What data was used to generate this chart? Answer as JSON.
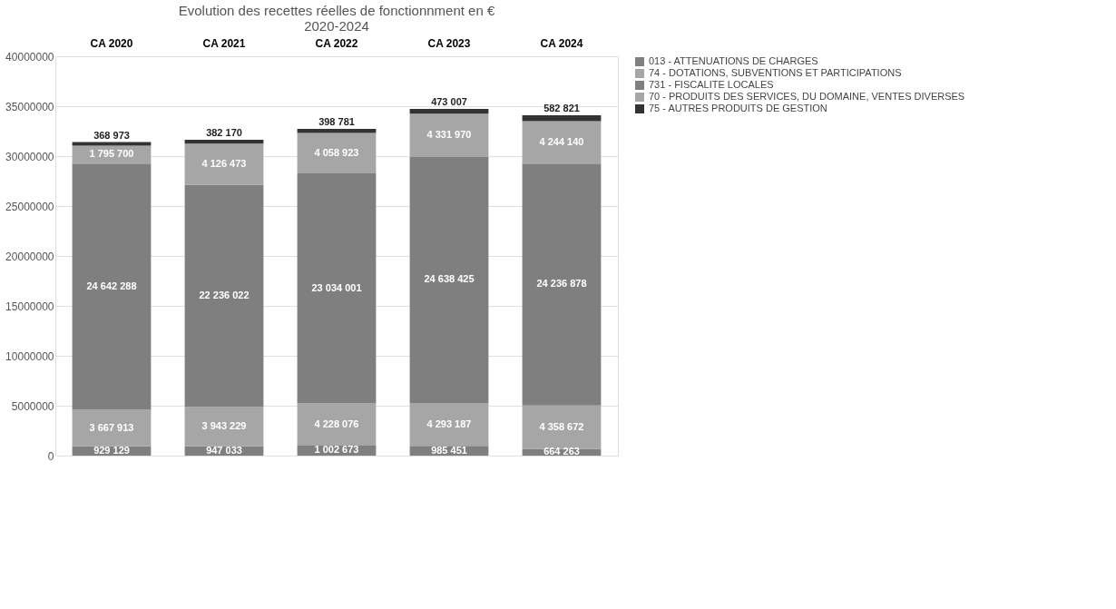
{
  "chart_data": {
    "type": "bar",
    "stacked": true,
    "title": "Evolution des recettes réelles de fonctionnment en €\n2020-2024",
    "categories": [
      "CA 2020",
      "CA 2021",
      "CA 2022",
      "CA 2023",
      "CA 2024"
    ],
    "series": [
      {
        "name": "013 - ATTENUATIONS DE CHARGES",
        "color": "#7f7f7f",
        "values": [
          929129,
          947033,
          1002673,
          985451,
          664263
        ],
        "value_labels": [
          "929 129",
          "947 033",
          "1 002 673",
          "985 451",
          "664 263"
        ]
      },
      {
        "name": "74 - DOTATIONS, SUBVENTIONS ET PARTICIPATIONS",
        "color": "#a6a6a6",
        "values": [
          3667913,
          3943229,
          4228076,
          4293187,
          4358672
        ],
        "value_labels": [
          "3 667 913",
          "3 943 229",
          "4 228 076",
          "4 293 187",
          "4 358 672"
        ]
      },
      {
        "name": "731 - FISCALITE LOCALES",
        "color": "#7f7f7f",
        "values": [
          24642288,
          22236022,
          23034001,
          24638425,
          24236878
        ],
        "value_labels": [
          "24 642 288",
          "22 236 022",
          "23 034 001",
          "24 638 425",
          "24 236 878"
        ]
      },
      {
        "name": "70 - PRODUITS DES SERVICES, DU DOMAINE, VENTES DIVERSES",
        "color": "#a6a6a6",
        "values": [
          1795700,
          4126473,
          4058923,
          4331970,
          4244140
        ],
        "value_labels": [
          "1 795 700",
          "4 126 473",
          "4 058 923",
          "4 331 970",
          "4 244 140"
        ]
      },
      {
        "name": "75 - AUTRES PRODUITS DE GESTION",
        "color": "#333333",
        "values": [
          368973,
          382170,
          398781,
          473007,
          582821
        ],
        "value_labels": [
          "368 973",
          "382 170",
          "398 781",
          "473 007",
          "582 821"
        ]
      }
    ],
    "ylim": [
      0,
      40000000
    ],
    "yticks": [
      0,
      5000000,
      10000000,
      15000000,
      20000000,
      25000000,
      30000000,
      35000000,
      40000000
    ],
    "grid": "y",
    "legend": "right"
  }
}
